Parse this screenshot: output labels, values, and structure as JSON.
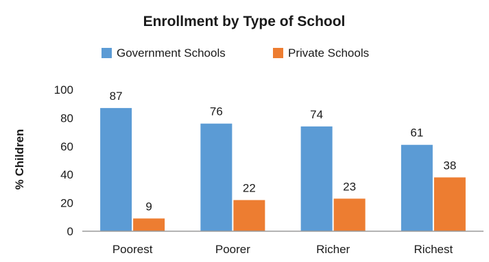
{
  "chart_data": {
    "type": "bar",
    "title": "Enrollment by Type of School",
    "ylabel": "% Children",
    "xlabel": "",
    "categories": [
      "Poorest",
      "Poorer",
      "Richer",
      "Richest"
    ],
    "series": [
      {
        "name": "Government Schools",
        "color": "#5b9bd5",
        "values": [
          87,
          76,
          74,
          61
        ]
      },
      {
        "name": "Private Schools",
        "color": "#ed7d31",
        "values": [
          9,
          22,
          23,
          38
        ]
      }
    ],
    "ylim": [
      0,
      100
    ],
    "yticks": [
      0,
      20,
      40,
      60,
      80,
      100
    ],
    "grid": false,
    "legend_position": "top"
  }
}
